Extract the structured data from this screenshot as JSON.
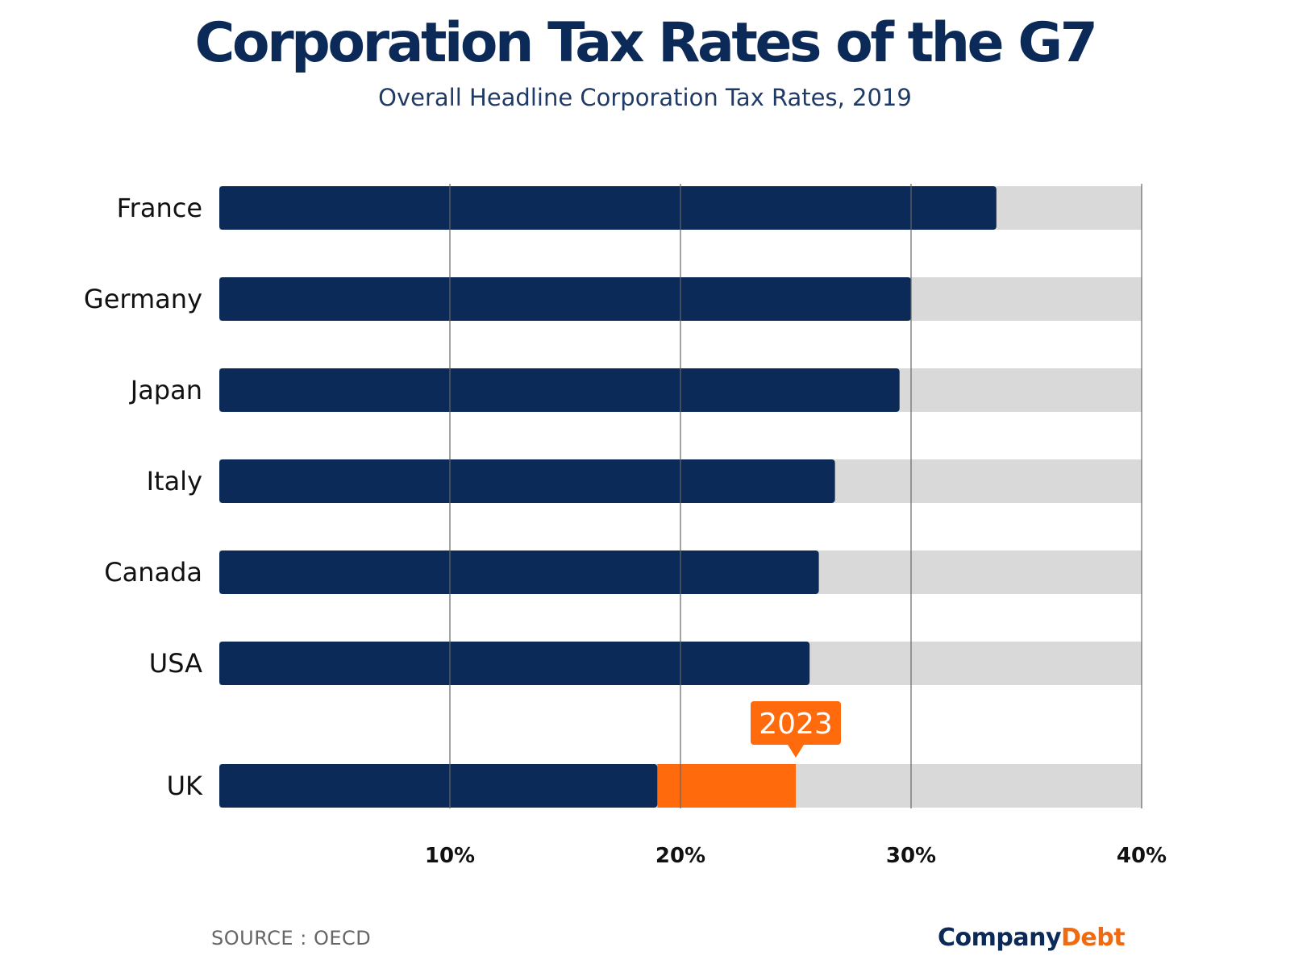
{
  "title": "Corporation Tax Rates of the G7",
  "subtitle": "Overall Headline Corporation Tax Rates, 2019",
  "source": "SOURCE : OECD",
  "brand": {
    "part1": "Company",
    "part2": "Debt"
  },
  "colors": {
    "bar": "#0b2a57",
    "track": "#d9d9d9",
    "highlight": "#ff6a0d",
    "grid": "#666666"
  },
  "chart_data": {
    "type": "bar",
    "orientation": "horizontal",
    "categories": [
      "France",
      "Germany",
      "Japan",
      "Italy",
      "Canada",
      "USA",
      "UK"
    ],
    "values": [
      33.7,
      30.0,
      29.5,
      26.7,
      26.0,
      25.6,
      19.0
    ],
    "highlight": {
      "category": "UK",
      "value": 25.0,
      "label": "2023"
    },
    "xlim": [
      0,
      40
    ],
    "xticks": [
      10,
      20,
      30,
      40
    ],
    "xtick_labels": [
      "10%",
      "20%",
      "30%",
      "40%"
    ],
    "grid": true
  }
}
